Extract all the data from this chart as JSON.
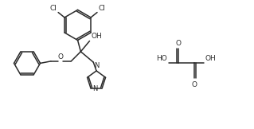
{
  "bg_color": "#ffffff",
  "line_color": "#2a2a2a",
  "line_width": 1.1,
  "font_size": 6.5,
  "fig_width": 3.19,
  "fig_height": 1.62,
  "dpi": 100,
  "xlim": [
    0,
    10
  ],
  "ylim": [
    0,
    5
  ]
}
